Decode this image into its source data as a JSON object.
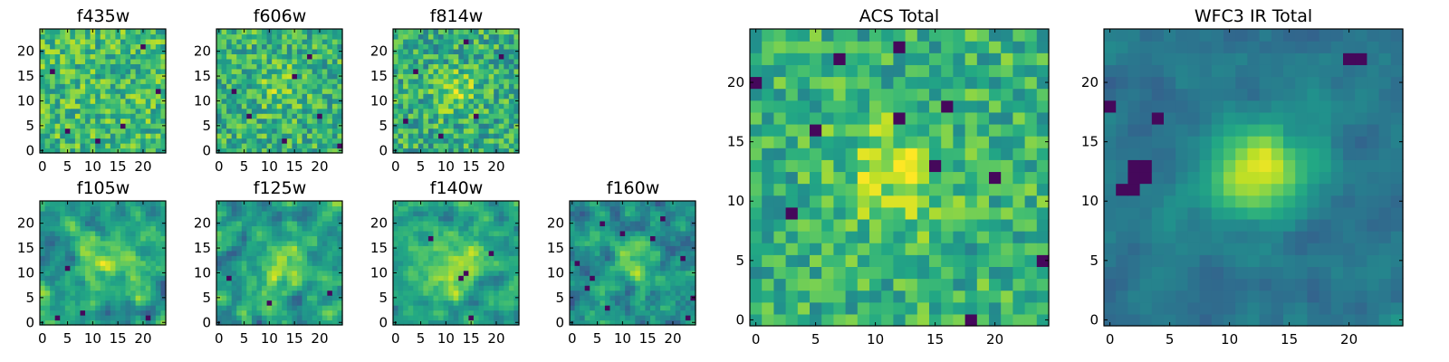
{
  "chart_data": [
    {
      "type": "heatmap",
      "title": "f435w",
      "grid_size": 25,
      "colormap": "viridis",
      "xlim": [
        -0.5,
        24.5
      ],
      "ylim": [
        -0.5,
        24.5
      ],
      "xticks": [
        0,
        5,
        10,
        15,
        20
      ],
      "yticks": [
        0,
        5,
        10,
        15,
        20
      ],
      "source_center": null,
      "source_sigma": 0,
      "source_amp": 0,
      "noise": 0.22,
      "base": 0.68,
      "smooth": 0,
      "seed": 11,
      "dark_pixels": [
        [
          5,
          4
        ],
        [
          16,
          5
        ],
        [
          11,
          2
        ],
        [
          20,
          21
        ],
        [
          2,
          16
        ],
        [
          23,
          12
        ]
      ]
    },
    {
      "type": "heatmap",
      "title": "f606w",
      "grid_size": 25,
      "colormap": "viridis",
      "xlim": [
        -0.5,
        24.5
      ],
      "ylim": [
        -0.5,
        24.5
      ],
      "xticks": [
        0,
        5,
        10,
        15,
        20
      ],
      "yticks": [
        0,
        5,
        10,
        15,
        20
      ],
      "source_center": [
        12,
        13
      ],
      "source_sigma": 3,
      "source_amp": 0.15,
      "noise": 0.22,
      "base": 0.64,
      "smooth": 0,
      "seed": 23,
      "dark_pixels": [
        [
          6,
          7
        ],
        [
          15,
          15
        ],
        [
          20,
          7
        ],
        [
          13,
          2
        ],
        [
          3,
          12
        ],
        [
          24,
          1
        ],
        [
          18,
          19
        ]
      ]
    },
    {
      "type": "heatmap",
      "title": "f814w",
      "grid_size": 25,
      "colormap": "viridis",
      "xlim": [
        -0.5,
        24.5
      ],
      "ylim": [
        -0.5,
        24.5
      ],
      "xticks": [
        0,
        5,
        10,
        15,
        20
      ],
      "yticks": [
        0,
        5,
        10,
        15,
        20
      ],
      "source_center": [
        12,
        12
      ],
      "source_sigma": 3,
      "source_amp": 0.22,
      "noise": 0.23,
      "base": 0.62,
      "smooth": 0,
      "seed": 37,
      "dark_pixels": [
        [
          4,
          16
        ],
        [
          9,
          3
        ],
        [
          16,
          7
        ],
        [
          21,
          19
        ],
        [
          2,
          6
        ],
        [
          14,
          22
        ]
      ]
    },
    {
      "type": "heatmap",
      "title": "f105w",
      "grid_size": 25,
      "colormap": "viridis",
      "xlim": [
        -0.5,
        24.5
      ],
      "ylim": [
        -0.5,
        24.5
      ],
      "xticks": [
        0,
        5,
        10,
        15,
        20
      ],
      "yticks": [
        0,
        5,
        10,
        15,
        20
      ],
      "source_center": [
        13,
        12
      ],
      "source_sigma": 3.5,
      "source_amp": 0.32,
      "noise": 0.24,
      "base": 0.56,
      "smooth": 1,
      "seed": 51,
      "dark_pixels": [
        [
          3,
          1
        ],
        [
          8,
          2
        ],
        [
          5,
          11
        ],
        [
          21,
          1
        ]
      ]
    },
    {
      "type": "heatmap",
      "title": "f125w",
      "grid_size": 25,
      "colormap": "viridis",
      "xlim": [
        -0.5,
        24.5
      ],
      "ylim": [
        -0.5,
        24.5
      ],
      "xticks": [
        0,
        5,
        10,
        15,
        20
      ],
      "yticks": [
        0,
        5,
        10,
        15,
        20
      ],
      "source_center": [
        13,
        12
      ],
      "source_sigma": 3.5,
      "source_amp": 0.3,
      "noise": 0.25,
      "base": 0.56,
      "smooth": 1,
      "seed": 64,
      "dark_pixels": [
        [
          2,
          9
        ],
        [
          10,
          4
        ],
        [
          22,
          6
        ]
      ]
    },
    {
      "type": "heatmap",
      "title": "f140w",
      "grid_size": 25,
      "colormap": "viridis",
      "xlim": [
        -0.5,
        24.5
      ],
      "ylim": [
        -0.5,
        24.5
      ],
      "xticks": [
        0,
        5,
        10,
        15,
        20
      ],
      "yticks": [
        0,
        5,
        10,
        15,
        20
      ],
      "source_center": [
        11,
        11
      ],
      "source_sigma": 4,
      "source_amp": 0.3,
      "noise": 0.22,
      "base": 0.58,
      "smooth": 1,
      "seed": 78,
      "dark_pixels": [
        [
          14,
          10
        ],
        [
          13,
          9
        ],
        [
          7,
          17
        ],
        [
          15,
          1
        ],
        [
          19,
          14
        ]
      ]
    },
    {
      "type": "heatmap",
      "title": "f160w",
      "grid_size": 25,
      "colormap": "viridis",
      "xlim": [
        -0.5,
        24.5
      ],
      "ylim": [
        -0.5,
        24.5
      ],
      "xticks": [
        0,
        5,
        10,
        15,
        20
      ],
      "yticks": [
        0,
        5,
        10,
        15,
        20
      ],
      "source_center": [
        13,
        12
      ],
      "source_sigma": 3,
      "source_amp": 0.3,
      "noise": 0.26,
      "base": 0.5,
      "smooth": 1,
      "seed": 92,
      "dark_pixels": [
        [
          3,
          7
        ],
        [
          4,
          9
        ],
        [
          6,
          20
        ],
        [
          10,
          18
        ],
        [
          18,
          21
        ],
        [
          24,
          5
        ],
        [
          22,
          13
        ],
        [
          7,
          3
        ],
        [
          1,
          12
        ],
        [
          16,
          17
        ],
        [
          23,
          1
        ]
      ]
    },
    {
      "type": "heatmap",
      "title": "ACS Total",
      "grid_size": 25,
      "colormap": "viridis",
      "xlim": [
        -0.5,
        24.5
      ],
      "ylim": [
        -0.5,
        24.5
      ],
      "xticks": [
        0,
        5,
        10,
        15,
        20
      ],
      "yticks": [
        0,
        5,
        10,
        15,
        20
      ],
      "source_center": [
        12,
        12.5
      ],
      "source_sigma": 3,
      "source_amp": 0.28,
      "noise": 0.2,
      "base": 0.64,
      "smooth": 0,
      "seed": 105,
      "dark_pixels": [
        [
          0,
          20
        ],
        [
          7,
          22
        ],
        [
          12,
          17
        ],
        [
          15,
          13
        ],
        [
          16,
          18
        ],
        [
          20,
          12
        ],
        [
          24,
          5
        ],
        [
          12,
          23
        ],
        [
          5,
          16
        ],
        [
          3,
          9
        ],
        [
          18,
          0
        ]
      ]
    },
    {
      "type": "heatmap",
      "title": "WFC3 IR Total",
      "grid_size": 25,
      "colormap": "viridis",
      "xlim": [
        -0.5,
        24.5
      ],
      "ylim": [
        -0.5,
        24.5
      ],
      "xticks": [
        0,
        5,
        10,
        15,
        20
      ],
      "yticks": [
        0,
        5,
        10,
        15,
        20
      ],
      "source_center": [
        12.5,
        12.5
      ],
      "source_sigma": 2.8,
      "source_amp": 0.55,
      "noise": 0.1,
      "base": 0.4,
      "smooth": 1,
      "seed": 119,
      "dark_pixels": [
        [
          2,
          13
        ],
        [
          3,
          13
        ],
        [
          2,
          12
        ],
        [
          3,
          12
        ],
        [
          1,
          11
        ],
        [
          2,
          11
        ],
        [
          4,
          17
        ],
        [
          21,
          22
        ],
        [
          20,
          22
        ],
        [
          0,
          18
        ]
      ]
    }
  ]
}
